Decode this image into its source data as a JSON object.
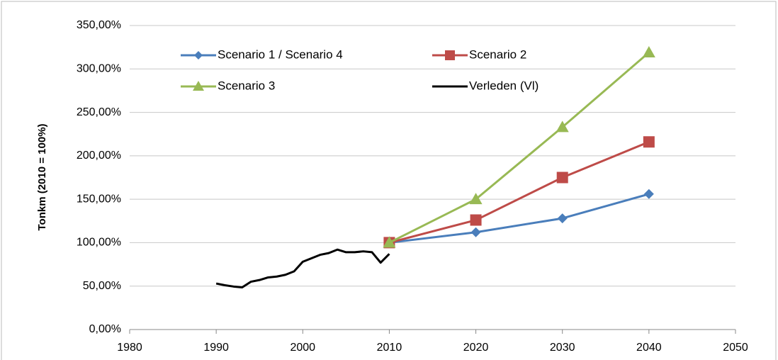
{
  "chart_data": {
    "type": "line",
    "y_label": "Tonkm (2010 = 100%)",
    "xlim": [
      1980,
      2050
    ],
    "xticks": [
      1980,
      1990,
      2000,
      2010,
      2020,
      2030,
      2040,
      2050
    ],
    "ylim": [
      0,
      350
    ],
    "yticks": [
      {
        "value": 0,
        "label": "0,00%"
      },
      {
        "value": 50,
        "label": "50,00%"
      },
      {
        "value": 100,
        "label": "100,00%"
      },
      {
        "value": 150,
        "label": "150,00%"
      },
      {
        "value": 200,
        "label": "200,00%"
      },
      {
        "value": 250,
        "label": "250,00%"
      },
      {
        "value": 300,
        "label": "300,00%"
      },
      {
        "value": 350,
        "label": "350,00%"
      }
    ],
    "grid": true,
    "legend": "top",
    "series": [
      {
        "name": "Scenario 1 / Scenario 4",
        "color": "#4a7ebb",
        "marker": "diamond",
        "x": [
          2010,
          2020,
          2030,
          2040
        ],
        "values": [
          100,
          112,
          128,
          156
        ]
      },
      {
        "name": "Scenario 2",
        "color": "#be4b48",
        "marker": "square",
        "x": [
          2010,
          2020,
          2030,
          2040
        ],
        "values": [
          100,
          126,
          175,
          216
        ]
      },
      {
        "name": "Scenario 3",
        "color": "#98b954",
        "marker": "triangle",
        "x": [
          2010,
          2020,
          2030,
          2040
        ],
        "values": [
          100,
          150,
          233,
          319
        ]
      },
      {
        "name": "Verleden (Vl)",
        "color": "#000000",
        "x": [
          1990,
          1991,
          1992,
          1993,
          1994,
          1995,
          1996,
          1997,
          1998,
          1999,
          2000,
          2001,
          2002,
          2003,
          2004,
          2005,
          2006,
          2007,
          2008,
          2009,
          2010
        ],
        "values": [
          53,
          51,
          49.5,
          48.5,
          55,
          57,
          60,
          61,
          63,
          67,
          78,
          82,
          86,
          88,
          92,
          89,
          89,
          90,
          89,
          77,
          87
        ]
      }
    ]
  }
}
